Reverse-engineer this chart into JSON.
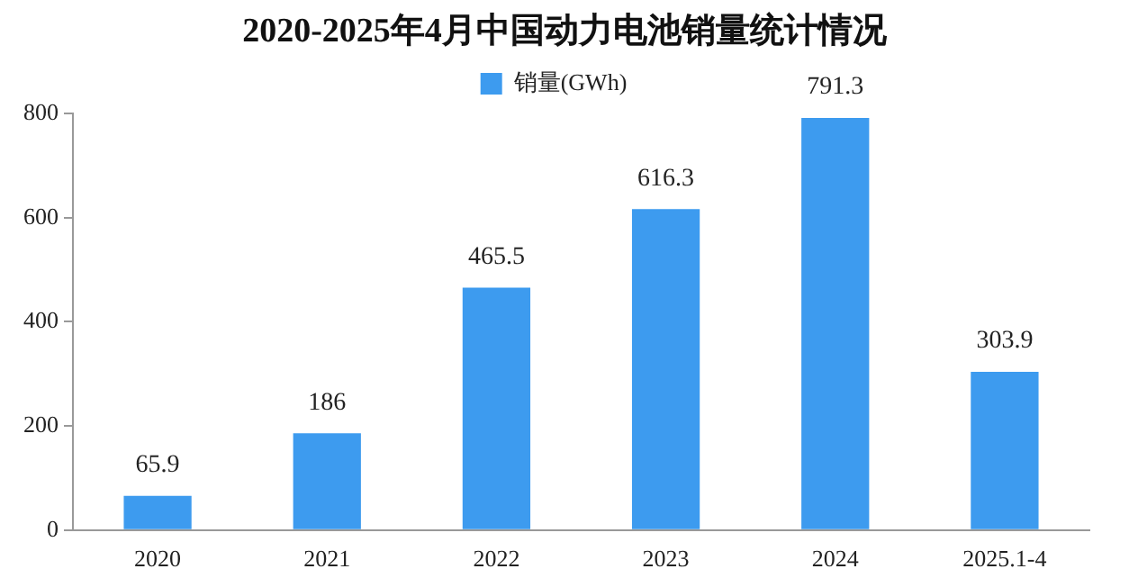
{
  "chart_data": {
    "type": "bar",
    "title": "2020-2025年4月中国动力电池销量统计情况",
    "categories": [
      "2020",
      "2021",
      "2022",
      "2023",
      "2024",
      "2025.1-4"
    ],
    "series": [
      {
        "name": "销量(GWh)",
        "color": "#3d9bef",
        "values": [
          65.9,
          186,
          465.5,
          616.3,
          791.3,
          303.9
        ]
      }
    ],
    "ylim": [
      0,
      800
    ],
    "yticks": [
      0,
      200,
      400,
      600,
      800
    ],
    "grid": false,
    "legend": "top",
    "data_labels": true
  }
}
